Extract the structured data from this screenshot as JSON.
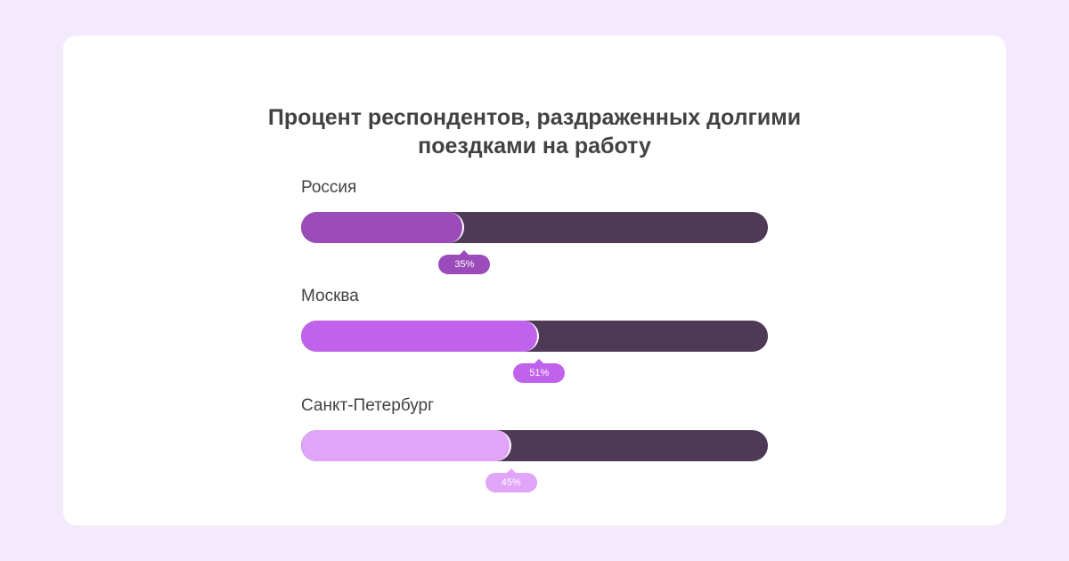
{
  "chart_data": {
    "type": "bar",
    "title_lines": [
      "Процент респондентов, раздраженных долгими",
      "поездками на работу"
    ],
    "xlim": [
      0,
      100
    ],
    "series": [
      {
        "name": "Россия",
        "value": 35,
        "label": "35%",
        "color": "#9b4cba"
      },
      {
        "name": "Москва",
        "value": 51,
        "label": "51%",
        "color": "#c062ec"
      },
      {
        "name": "Санкт-Петербург",
        "value": 45,
        "label": "45%",
        "color": "#e0a5f9"
      }
    ],
    "track_color": "#4e3a56"
  }
}
